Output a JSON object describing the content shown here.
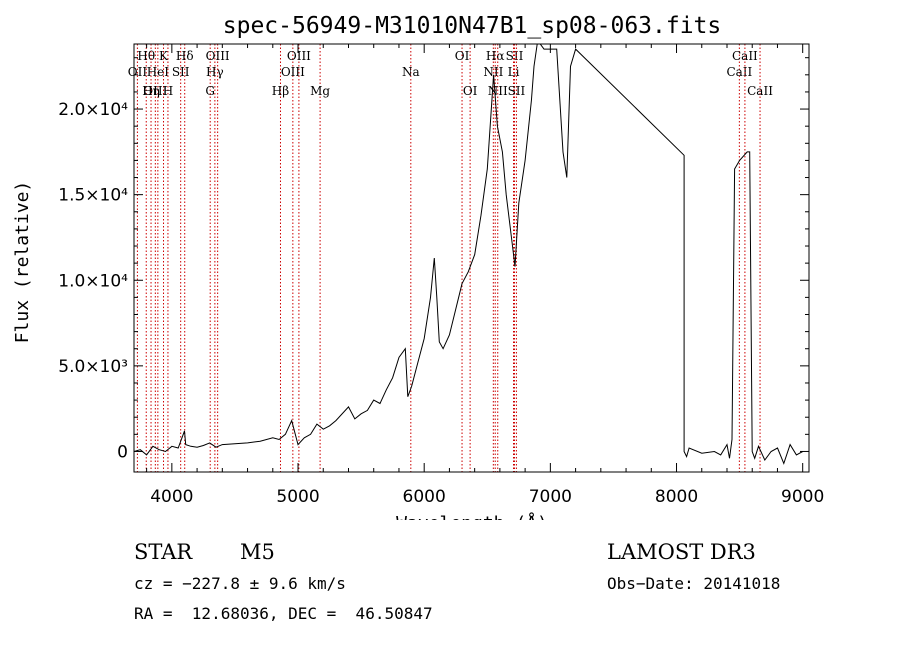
{
  "chart_data": {
    "type": "line",
    "title": "spec-56949-M31010N47B1_sp08-063.fits",
    "xlabel": "Wavelength (Å)",
    "ylabel": "Flux (relative)",
    "xlim": [
      3700,
      9050
    ],
    "ylim": [
      -1200,
      23800
    ],
    "xticks": [
      {
        "value": 4000,
        "label": "4000"
      },
      {
        "value": 5000,
        "label": "5000"
      },
      {
        "value": 6000,
        "label": "6000"
      },
      {
        "value": 7000,
        "label": "7000"
      },
      {
        "value": 8000,
        "label": "8000"
      },
      {
        "value": 9000,
        "label": "9000"
      }
    ],
    "yticks": [
      {
        "value": 0,
        "label": "0"
      },
      {
        "value": 5000,
        "label": "5.0×10³"
      },
      {
        "value": 10000,
        "label": "1.0×10⁴"
      },
      {
        "value": 15000,
        "label": "1.5×10⁴"
      },
      {
        "value": 20000,
        "label": "2.0×10⁴"
      }
    ],
    "series": [
      {
        "name": "spectrum",
        "x": [
          3700,
          3750,
          3800,
          3850,
          3900,
          3950,
          4000,
          4050,
          4100,
          4110,
          4150,
          4200,
          4250,
          4300,
          4350,
          4400,
          4500,
          4600,
          4700,
          4800,
          4850,
          4900,
          4950,
          5000,
          5050,
          5100,
          5150,
          5200,
          5250,
          5300,
          5400,
          5450,
          5500,
          5550,
          5600,
          5650,
          5700,
          5750,
          5800,
          5850,
          5870,
          5900,
          5950,
          6000,
          6050,
          6080,
          6100,
          6120,
          6150,
          6200,
          6250,
          6300,
          6350,
          6400,
          6450,
          6500,
          6550,
          6580,
          6620,
          6650,
          6700,
          6720,
          6750,
          6800,
          6850,
          6870,
          6900,
          6950,
          7000,
          7050,
          7100,
          7130,
          7160,
          7200,
          8060,
          8060,
          8080,
          8100,
          8200,
          8300,
          8350,
          8400,
          8420,
          8440,
          8460,
          8500,
          8560,
          8580,
          8600,
          8620,
          8650,
          8700,
          8750,
          8800,
          8850,
          8900,
          8950,
          9000
        ],
        "y": [
          0,
          100,
          -200,
          300,
          100,
          0,
          300,
          200,
          1200,
          400,
          300,
          250,
          350,
          500,
          250,
          400,
          450,
          500,
          600,
          800,
          700,
          1000,
          1800,
          400,
          800,
          1000,
          1600,
          1300,
          1500,
          1800,
          2600,
          1900,
          2200,
          2400,
          3000,
          2800,
          3600,
          4300,
          5500,
          6000,
          3200,
          3800,
          5200,
          6600,
          9000,
          11300,
          9000,
          6400,
          6000,
          6800,
          8300,
          9800,
          10500,
          11500,
          13800,
          16500,
          22000,
          19000,
          17500,
          15000,
          12000,
          10800,
          14500,
          17000,
          20500,
          22500,
          24000,
          23500,
          23500,
          23500,
          17500,
          16000,
          22500,
          23500,
          17300,
          0,
          -300,
          200,
          -100,
          0,
          -200,
          400,
          -400,
          700,
          16500,
          17000,
          17500,
          17500,
          0,
          -400,
          300,
          -500,
          0,
          200,
          -700,
          400,
          -200,
          0
        ]
      }
    ],
    "lines": [
      {
        "name": "OII",
        "x": 3727,
        "label": "OII",
        "row": 2
      },
      {
        "name": "H-theta",
        "x": 3797,
        "label": "Hθ",
        "row": 1
      },
      {
        "name": "OIII-3869",
        "x": 3869,
        "label": "OIII",
        "row": 3
      },
      {
        "name": "HeI",
        "x": 3889,
        "label": "HeI",
        "row": 2
      },
      {
        "name": "K",
        "x": 3934,
        "label": "K",
        "row": 1
      },
      {
        "name": "H-eta",
        "x": 3835,
        "label": "Hη",
        "row": 3
      },
      {
        "name": "H",
        "x": 3969,
        "label": "H",
        "row": 3
      },
      {
        "name": "SII-4070",
        "x": 4070,
        "label": "SII",
        "row": 2
      },
      {
        "name": "H-delta",
        "x": 4102,
        "label": "Hδ",
        "row": 1
      },
      {
        "name": "G",
        "x": 4304,
        "label": "G",
        "row": 3
      },
      {
        "name": "H-gamma",
        "x": 4341,
        "label": "Hγ",
        "row": 2
      },
      {
        "name": "OIII-4363",
        "x": 4363,
        "label": "OIII",
        "row": 1
      },
      {
        "name": "H-beta",
        "x": 4861,
        "label": "Hβ",
        "row": 3
      },
      {
        "name": "OIII-4959",
        "x": 4959,
        "label": "OIII",
        "row": 2
      },
      {
        "name": "OIII-5007",
        "x": 5007,
        "label": "OIII",
        "row": 1
      },
      {
        "name": "Mg",
        "x": 5175,
        "label": "Mg",
        "row": 3
      },
      {
        "name": "Na",
        "x": 5894,
        "label": "Na",
        "row": 2
      },
      {
        "name": "OI-6300",
        "x": 6300,
        "label": "OI",
        "row": 1
      },
      {
        "name": "OI-6364",
        "x": 6364,
        "label": "OI",
        "row": 3
      },
      {
        "name": "NII-6548",
        "x": 6548,
        "label": "NII",
        "row": 2
      },
      {
        "name": "H-alpha",
        "x": 6563,
        "label": "Hα",
        "row": 1
      },
      {
        "name": "NII-6583",
        "x": 6583,
        "label": "NII",
        "row": 3
      },
      {
        "name": "Li",
        "x": 6708,
        "label": "Li",
        "row": 2
      },
      {
        "name": "SII-6716",
        "x": 6716,
        "label": "SII",
        "row": 1
      },
      {
        "name": "SII-6731",
        "x": 6731,
        "label": "SII",
        "row": 3
      },
      {
        "name": "CaII-8498",
        "x": 8498,
        "label": "CaII",
        "row": 2
      },
      {
        "name": "CaII-8542",
        "x": 8542,
        "label": "CaII",
        "row": 1
      },
      {
        "name": "CaII-8662",
        "x": 8662,
        "label": "CaII",
        "row": 3
      }
    ]
  },
  "info": {
    "class": "STAR",
    "subclass": "M5",
    "survey": "LAMOST DR3",
    "cz": "cz = −227.8 ± 9.6 km/s",
    "obs_date": "Obs−Date: 20141018",
    "radec": "RA =  12.68036, DEC =  46.50847"
  },
  "colors": {
    "spectrum": "#000000",
    "line_marker": "#cc0000",
    "axes": "#000000"
  }
}
